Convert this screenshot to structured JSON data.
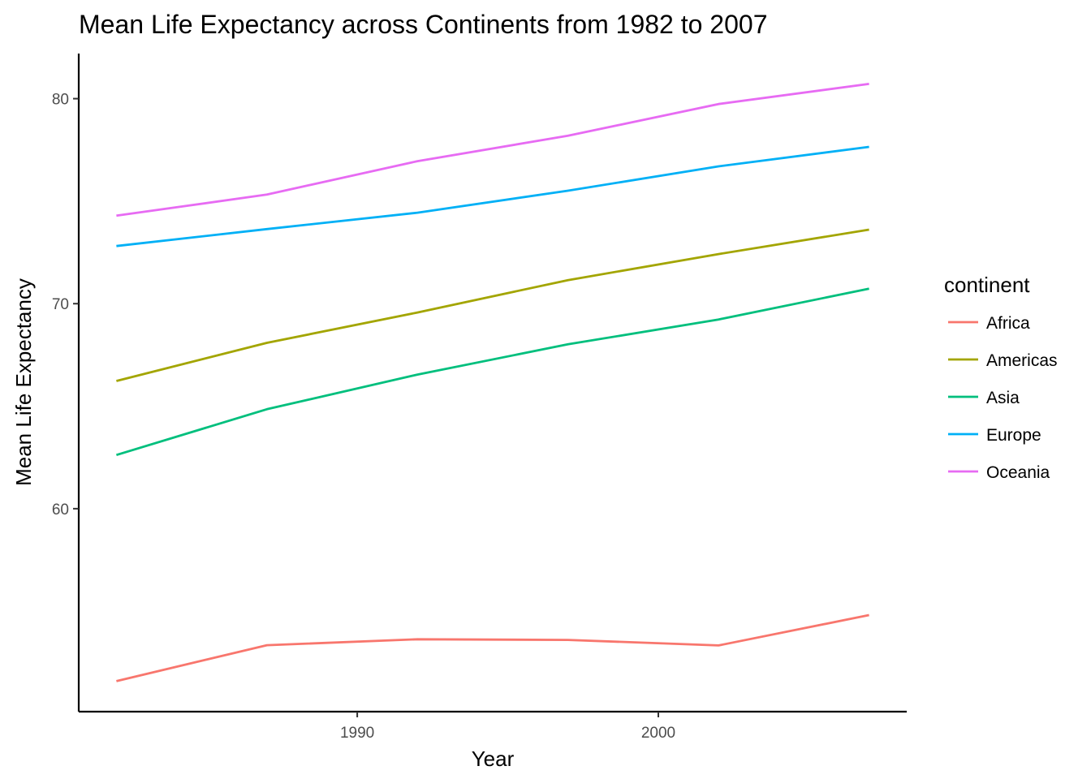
{
  "chart_data": {
    "type": "line",
    "title": "Mean Life Expectancy across Continents from 1982 to 2007",
    "xlabel": "Year",
    "ylabel": "Mean Life Expectancy",
    "x": [
      1982,
      1987,
      1992,
      1997,
      2002,
      2007
    ],
    "xlim": [
      1980.75,
      2008.25
    ],
    "ylim": [
      50.1,
      82.2
    ],
    "xticks": [
      1990,
      2000
    ],
    "yticks": [
      60,
      70,
      80
    ],
    "grid": false,
    "legend": {
      "title": "continent",
      "position": "right"
    },
    "series": [
      {
        "name": "Africa",
        "color": "#F8766D",
        "values": [
          51.59,
          53.34,
          53.63,
          53.6,
          53.33,
          54.81
        ]
      },
      {
        "name": "Americas",
        "color": "#A3A500",
        "values": [
          66.23,
          68.09,
          69.57,
          71.15,
          72.42,
          73.61
        ]
      },
      {
        "name": "Asia",
        "color": "#00BF7D",
        "values": [
          62.62,
          64.85,
          66.54,
          68.02,
          69.23,
          70.73
        ]
      },
      {
        "name": "Europe",
        "color": "#00B0F6",
        "values": [
          72.81,
          73.64,
          74.44,
          75.51,
          76.7,
          77.65
        ]
      },
      {
        "name": "Oceania",
        "color": "#E76BF3",
        "values": [
          74.29,
          75.32,
          76.95,
          78.19,
          79.74,
          80.72
        ]
      }
    ]
  }
}
